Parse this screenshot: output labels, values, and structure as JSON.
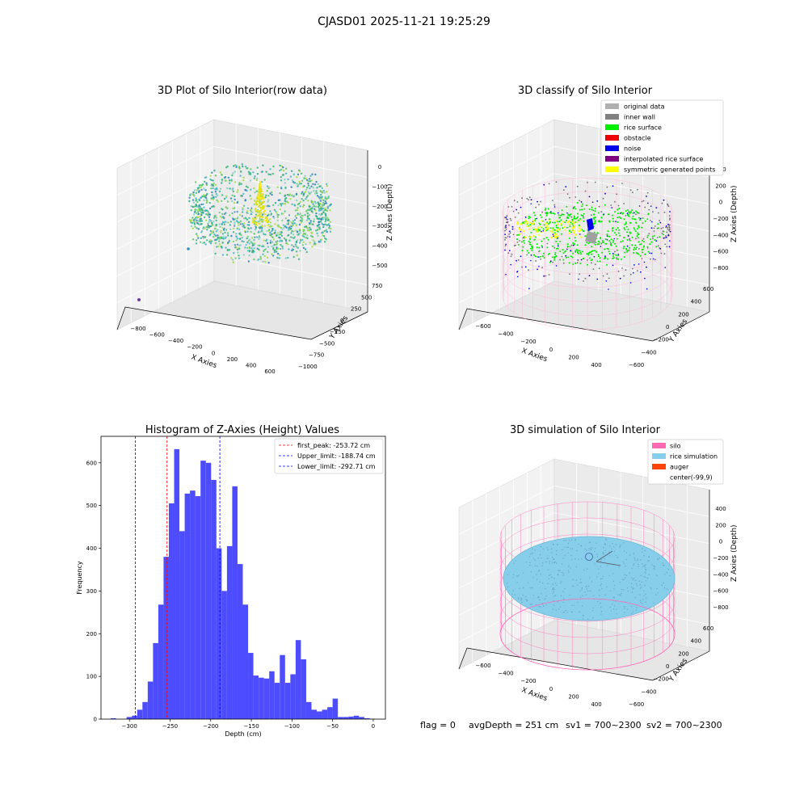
{
  "figure": {
    "suptitle": "CJASD01 2025-11-21 19:25:29",
    "footer": {
      "flag": "flag = 0",
      "avg_depth": "avgDepth = 251 cm",
      "sv1": "sv1 = 700~2300",
      "sv2": "sv2 = 700~2300"
    }
  },
  "panels": {
    "raw": {
      "title": "3D Plot of Silo Interior(row data)",
      "xlabel": "X Axies",
      "ylabel": "Y Axies",
      "zlabel": "Z Axies (Depth)",
      "xticks": [
        "−800",
        "−600",
        "−400",
        "−200",
        "0",
        "200",
        "400",
        "600"
      ],
      "yticks": [
        "750",
        "500",
        "250",
        "0",
        "−250",
        "−500",
        "−750",
        "−1000"
      ],
      "zticks": [
        "0",
        "−100",
        "−200",
        "−300",
        "−400",
        "−500"
      ]
    },
    "classify": {
      "title": "3D classify of Silo Interior",
      "xlabel": "X Axies",
      "ylabel": "Y Axies",
      "zlabel": "Z Axies (Depth)",
      "xticks": [
        "−600",
        "−400",
        "−200",
        "0",
        "200",
        "400"
      ],
      "yticks": [
        "600",
        "400",
        "200",
        "0",
        "−200",
        "−400",
        "−600"
      ],
      "zticks": [
        "400",
        "200",
        "0",
        "−200",
        "−400",
        "−600",
        "−800"
      ],
      "legend": [
        {
          "label": "original data",
          "color": "#b0b0b0"
        },
        {
          "label": "inner wall",
          "color": "#808080"
        },
        {
          "label": "rice surface",
          "color": "#00ee00"
        },
        {
          "label": "obstacle",
          "color": "#ee0000"
        },
        {
          "label": "noise",
          "color": "#0000ee"
        },
        {
          "label": "interpolated rice surface",
          "color": "#800080"
        },
        {
          "label": "symmetric generated points",
          "color": "#ffff00"
        }
      ]
    },
    "simulation": {
      "title": "3D simulation of Silo Interior",
      "xlabel": "X Axies",
      "ylabel": "Y Axies",
      "zlabel": "Z Axies (Depth)",
      "xticks": [
        "−600",
        "−400",
        "−200",
        "0",
        "200",
        "400"
      ],
      "yticks": [
        "600",
        "400",
        "200",
        "0",
        "−200",
        "−400",
        "−600"
      ],
      "zticks": [
        "400",
        "200",
        "0",
        "−200",
        "−400",
        "−600",
        "−800"
      ],
      "legend": [
        {
          "label": "silo",
          "color": "#ff69b4"
        },
        {
          "label": "rice simulation",
          "color": "#87ceeb"
        },
        {
          "label": "auger",
          "color": "#ff4500"
        },
        {
          "label": "center(-99,9)",
          "color": ""
        }
      ]
    }
  },
  "chart_data": {
    "type": "bar",
    "title": "Histogram of Z-Axies (Height) Values",
    "xlabel": "Depth (cm)",
    "ylabel": "Frequency",
    "xlim": [
      -335,
      15
    ],
    "ylim": [
      0,
      662
    ],
    "xticks": [
      -300,
      -250,
      -200,
      -150,
      -100,
      -50,
      0
    ],
    "yticks": [
      0,
      100,
      200,
      300,
      400,
      500,
      600
    ],
    "grid": false,
    "legend_position": "top-right",
    "bin_start": -323,
    "bin_width": 6.5,
    "values": [
      2,
      0,
      0,
      5,
      8,
      22,
      40,
      88,
      178,
      268,
      380,
      505,
      632,
      440,
      528,
      535,
      522,
      605,
      600,
      560,
      400,
      300,
      405,
      545,
      363,
      268,
      155,
      102,
      97,
      95,
      112,
      85,
      150,
      85,
      105,
      185,
      140,
      40,
      22,
      18,
      22,
      28,
      48,
      5,
      5,
      6,
      8,
      5,
      2,
      1
    ],
    "reference_lines": [
      {
        "name": "first_peak: -253.72 cm",
        "x": -253.72,
        "color": "#ff0000"
      },
      {
        "name": "Upper_limit: -188.74 cm",
        "x": -188.74,
        "color": "#0000ff"
      },
      {
        "name": "Lower_limit: -292.71 cm",
        "x": -292.71,
        "color": "#0000ff"
      }
    ],
    "bar_color": "#4d4dff"
  }
}
